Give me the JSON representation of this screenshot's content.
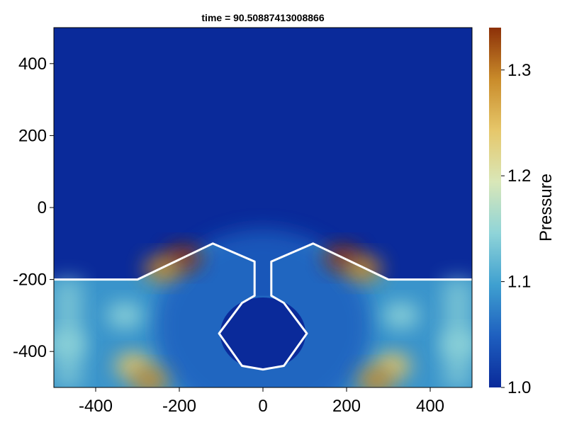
{
  "chart_data": {
    "type": "heatmap",
    "title": "time = 90.50887413008866",
    "xlabel": "",
    "ylabel": "",
    "xlim": [
      -500,
      500
    ],
    "ylim": [
      -500,
      500
    ],
    "x_ticks": [
      -400,
      -200,
      0,
      200,
      400
    ],
    "y_ticks": [
      -400,
      -200,
      0,
      200,
      400
    ],
    "x_tick_labels": [
      "-400",
      "-200",
      "0",
      "200",
      "400"
    ],
    "y_tick_labels": [
      "-400",
      "-200",
      "0",
      "200",
      "400"
    ],
    "colorbar": {
      "label": "Pressure",
      "range": [
        1.0,
        1.34
      ],
      "ticks": [
        1.0,
        1.1,
        1.2,
        1.3
      ],
      "tick_labels": [
        "1.0",
        "1.1",
        "1.2",
        "1.3"
      ],
      "colormap": [
        "#0a2a9a",
        "#1e5fbf",
        "#3fa0d0",
        "#8fd4d8",
        "#d9e7b8",
        "#e6c76a",
        "#c98b2a",
        "#8c3008"
      ]
    },
    "background_value": 1.0,
    "boundary_polyline": [
      [
        -500,
        -200
      ],
      [
        -300,
        -200
      ],
      [
        -120,
        -100
      ],
      [
        -20,
        -150
      ],
      [
        -20,
        -245
      ],
      [
        -50,
        -265
      ],
      [
        -105,
        -350
      ],
      [
        -50,
        -440
      ],
      [
        0,
        -450
      ],
      [
        50,
        -440
      ],
      [
        105,
        -350
      ],
      [
        50,
        -265
      ],
      [
        20,
        -245
      ],
      [
        20,
        -150
      ],
      [
        120,
        -100
      ],
      [
        300,
        -200
      ],
      [
        500,
        -200
      ]
    ],
    "hotspots": [
      {
        "x": -190,
        "y": -140,
        "value": 1.32
      },
      {
        "x": -240,
        "y": -170,
        "value": 1.27
      },
      {
        "x": 190,
        "y": -140,
        "value": 1.32
      },
      {
        "x": 240,
        "y": -170,
        "value": 1.27
      },
      {
        "x": -310,
        "y": -440,
        "value": 1.25
      },
      {
        "x": -270,
        "y": -480,
        "value": 1.3
      },
      {
        "x": 310,
        "y": -440,
        "value": 1.25
      },
      {
        "x": 270,
        "y": -480,
        "value": 1.3
      },
      {
        "x": -470,
        "y": -380,
        "value": 1.15
      },
      {
        "x": 470,
        "y": -380,
        "value": 1.15
      },
      {
        "x": -330,
        "y": -300,
        "value": 1.17
      },
      {
        "x": 330,
        "y": -300,
        "value": 1.17
      }
    ]
  }
}
